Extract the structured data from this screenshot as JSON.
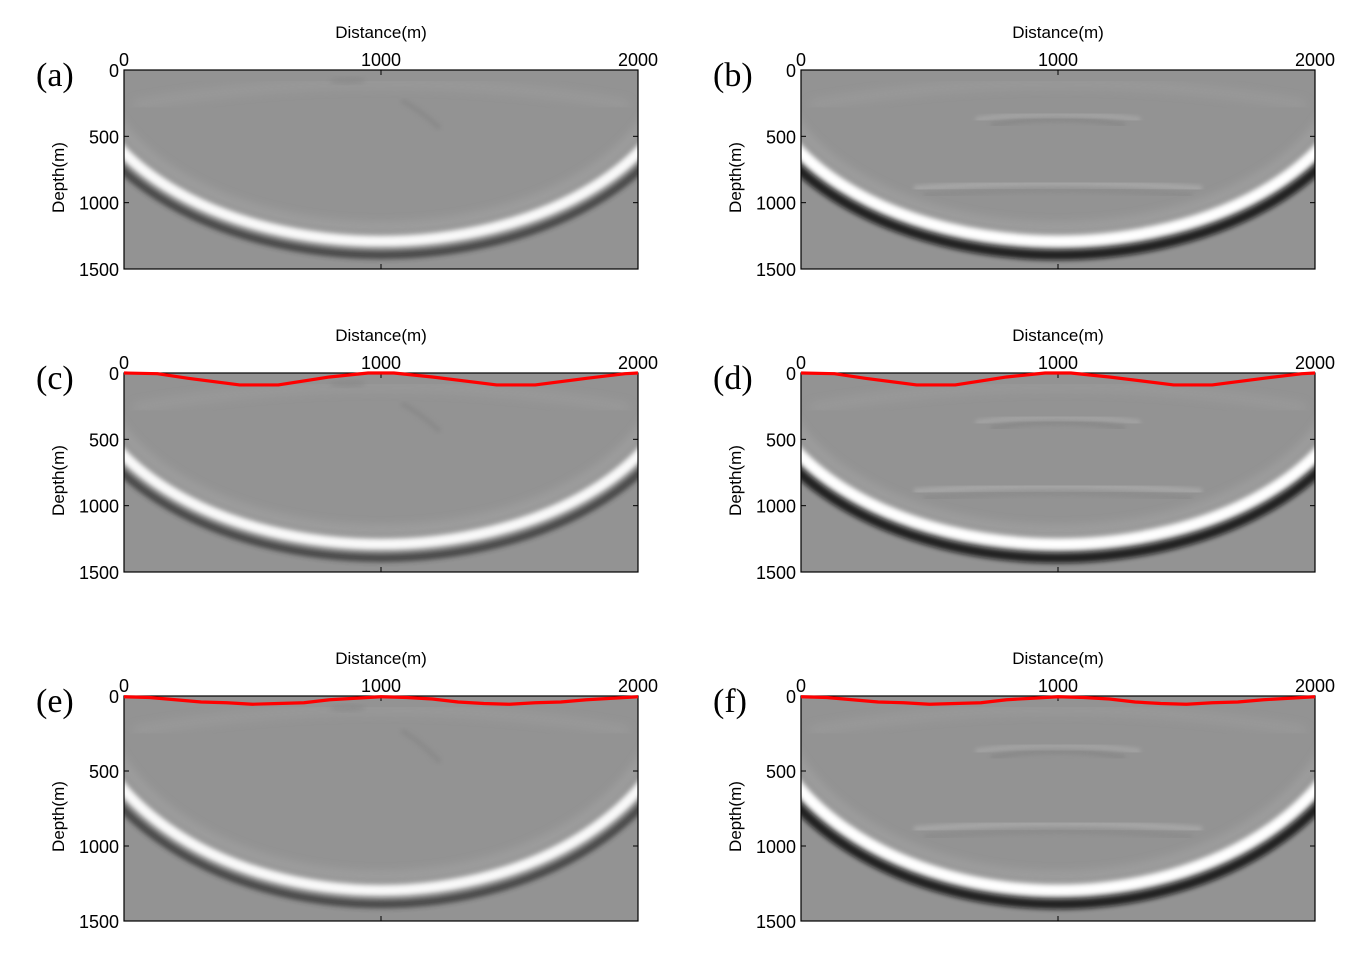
{
  "colors": {
    "background_gray": "#939393",
    "surface_line": "#ff0000",
    "axis": "#000000"
  },
  "chart_data": [
    {
      "type": "heatmap",
      "panel": "(a)",
      "xlabel": "Distance(m)",
      "ylabel": "Depth(m)",
      "xlim": [
        0,
        2000
      ],
      "ylim": [
        0,
        1500
      ],
      "xticks": [
        "0",
        "1000",
        "2000"
      ],
      "yticks": [
        "0",
        "500",
        "1000",
        "1500"
      ],
      "colormap": "gray",
      "surface_line": false,
      "flat_events": false,
      "surface_points": []
    },
    {
      "type": "heatmap",
      "panel": "(b)",
      "xlabel": "Distance(m)",
      "ylabel": "Depth(m)",
      "xlim": [
        0,
        2000
      ],
      "ylim": [
        0,
        1500
      ],
      "xticks": [
        "0",
        "1000",
        "2000"
      ],
      "yticks": [
        "0",
        "500",
        "1000",
        "1500"
      ],
      "colormap": "gray",
      "surface_line": false,
      "flat_events": true,
      "surface_points": []
    },
    {
      "type": "heatmap",
      "panel": "(c)",
      "xlabel": "Distance(m)",
      "ylabel": "Depth(m)",
      "xlim": [
        0,
        2000
      ],
      "ylim": [
        0,
        1500
      ],
      "xticks": [
        "0",
        "1000",
        "2000"
      ],
      "yticks": [
        "0",
        "500",
        "1000",
        "1500"
      ],
      "colormap": "gray",
      "surface_line": true,
      "flat_events": false,
      "surface_points": [
        [
          0,
          0
        ],
        [
          130,
          5
        ],
        [
          250,
          40
        ],
        [
          450,
          90
        ],
        [
          600,
          90
        ],
        [
          800,
          30
        ],
        [
          950,
          0
        ],
        [
          1050,
          0
        ],
        [
          1200,
          30
        ],
        [
          1450,
          90
        ],
        [
          1600,
          90
        ],
        [
          1800,
          40
        ],
        [
          1950,
          5
        ],
        [
          2000,
          0
        ]
      ]
    },
    {
      "type": "heatmap",
      "panel": "(d)",
      "xlabel": "Distance(m)",
      "ylabel": "Depth(m)",
      "xlim": [
        0,
        2000
      ],
      "ylim": [
        0,
        1500
      ],
      "xticks": [
        "0",
        "1000",
        "2000"
      ],
      "yticks": [
        "0",
        "500",
        "1000",
        "1500"
      ],
      "colormap": "gray",
      "surface_line": true,
      "flat_events": true,
      "surface_points": [
        [
          0,
          0
        ],
        [
          130,
          5
        ],
        [
          250,
          40
        ],
        [
          450,
          90
        ],
        [
          600,
          90
        ],
        [
          800,
          30
        ],
        [
          950,
          0
        ],
        [
          1050,
          0
        ],
        [
          1200,
          30
        ],
        [
          1450,
          90
        ],
        [
          1600,
          90
        ],
        [
          1800,
          40
        ],
        [
          1950,
          5
        ],
        [
          2000,
          0
        ]
      ]
    },
    {
      "type": "heatmap",
      "panel": "(e)",
      "xlabel": "Distance(m)",
      "ylabel": "Depth(m)",
      "xlim": [
        0,
        2000
      ],
      "ylim": [
        0,
        1500
      ],
      "xticks": [
        "0",
        "1000",
        "2000"
      ],
      "yticks": [
        "0",
        "500",
        "1000",
        "1500"
      ],
      "colormap": "gray",
      "surface_line": true,
      "flat_events": false,
      "surface_points": [
        [
          0,
          5
        ],
        [
          100,
          10
        ],
        [
          200,
          25
        ],
        [
          300,
          40
        ],
        [
          400,
          45
        ],
        [
          500,
          55
        ],
        [
          600,
          50
        ],
        [
          700,
          45
        ],
        [
          800,
          25
        ],
        [
          900,
          15
        ],
        [
          1000,
          5
        ],
        [
          1100,
          10
        ],
        [
          1200,
          20
        ],
        [
          1300,
          40
        ],
        [
          1400,
          50
        ],
        [
          1500,
          55
        ],
        [
          1600,
          45
        ],
        [
          1700,
          40
        ],
        [
          1800,
          25
        ],
        [
          1900,
          15
        ],
        [
          2000,
          5
        ]
      ]
    },
    {
      "type": "heatmap",
      "panel": "(f)",
      "xlabel": "Distance(m)",
      "ylabel": "Depth(m)",
      "xlim": [
        0,
        2000
      ],
      "ylim": [
        0,
        1500
      ],
      "xticks": [
        "0",
        "1000",
        "2000"
      ],
      "yticks": [
        "0",
        "500",
        "1000",
        "1500"
      ],
      "colormap": "gray",
      "surface_line": true,
      "flat_events": true,
      "surface_points": [
        [
          0,
          5
        ],
        [
          100,
          10
        ],
        [
          200,
          25
        ],
        [
          300,
          40
        ],
        [
          400,
          45
        ],
        [
          500,
          55
        ],
        [
          600,
          50
        ],
        [
          700,
          45
        ],
        [
          800,
          25
        ],
        [
          900,
          15
        ],
        [
          1000,
          5
        ],
        [
          1100,
          10
        ],
        [
          1200,
          20
        ],
        [
          1300,
          40
        ],
        [
          1400,
          50
        ],
        [
          1500,
          55
        ],
        [
          1600,
          45
        ],
        [
          1700,
          40
        ],
        [
          1800,
          25
        ],
        [
          1900,
          15
        ],
        [
          2000,
          5
        ]
      ]
    }
  ]
}
